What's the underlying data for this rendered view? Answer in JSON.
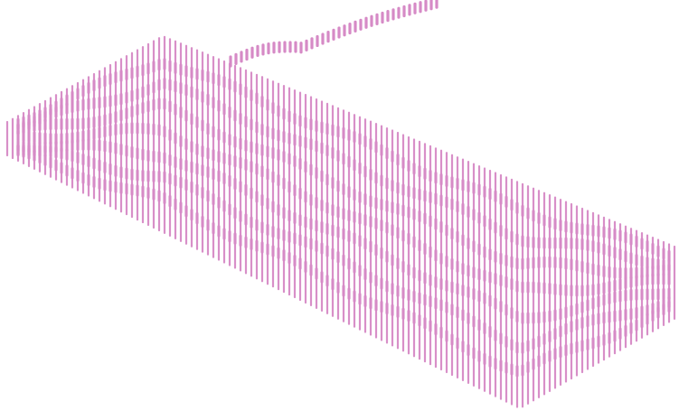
{
  "artwork": {
    "subject": "keyboard-with-cable",
    "style": "vertical-line-hatching",
    "line_color": "#d68ac6",
    "background_color": "#ffffff"
  }
}
